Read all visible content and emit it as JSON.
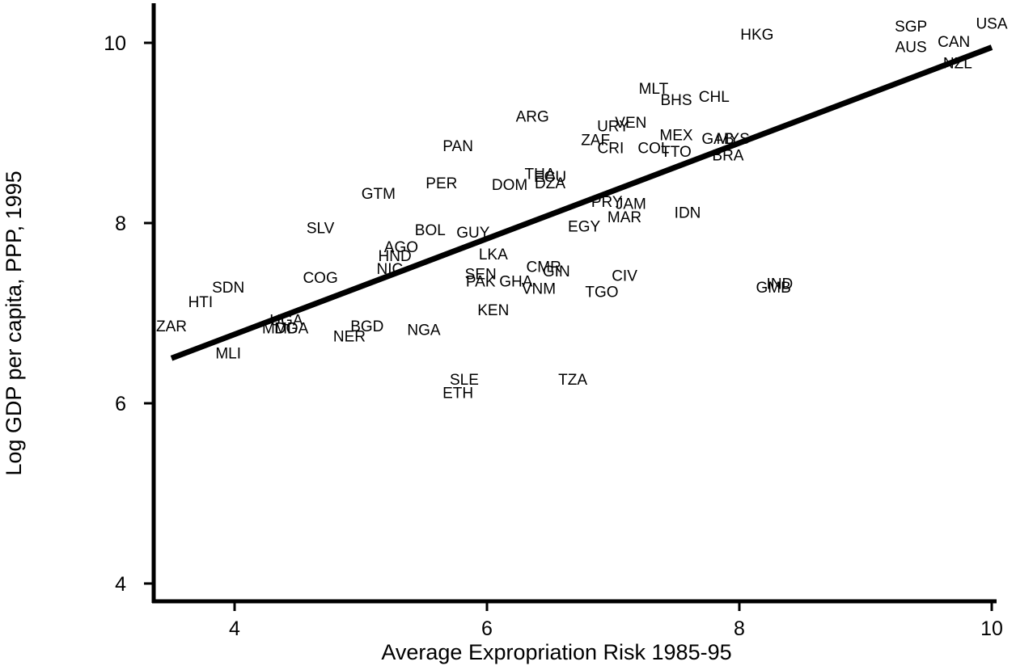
{
  "chart_data": {
    "type": "scatter",
    "xlabel": "Average Expropriation Risk 1985-95",
    "ylabel": "Log GDP per capita, PPP, 1995",
    "xlim": [
      3.4,
      10.3
    ],
    "ylim": [
      3.8,
      10.5
    ],
    "x_ticks": [
      4,
      6,
      8,
      10
    ],
    "y_ticks": [
      4,
      6,
      8,
      10
    ],
    "grid": false,
    "legend": "none",
    "fit_line": {
      "x": [
        3.5,
        10.0
      ],
      "y": [
        6.5,
        9.95
      ]
    },
    "points": [
      {
        "label": "USA",
        "x": 10.0,
        "y": 10.22
      },
      {
        "label": "SGP",
        "x": 9.36,
        "y": 10.19
      },
      {
        "label": "AUS",
        "x": 9.36,
        "y": 9.96
      },
      {
        "label": "CAN",
        "x": 9.7,
        "y": 10.02
      },
      {
        "label": "NZL",
        "x": 9.73,
        "y": 9.78
      },
      {
        "label": "HKG",
        "x": 8.14,
        "y": 10.1
      },
      {
        "label": "MLT",
        "x": 7.32,
        "y": 9.5
      },
      {
        "label": "BHS",
        "x": 7.5,
        "y": 9.37
      },
      {
        "label": "CHL",
        "x": 7.8,
        "y": 9.41
      },
      {
        "label": "ARG",
        "x": 6.36,
        "y": 9.19
      },
      {
        "label": "URY",
        "x": 7.0,
        "y": 9.08
      },
      {
        "label": "VEN",
        "x": 7.14,
        "y": 9.12
      },
      {
        "label": "ZAF",
        "x": 6.86,
        "y": 8.93
      },
      {
        "label": "CRI",
        "x": 6.98,
        "y": 8.84
      },
      {
        "label": "COL",
        "x": 7.32,
        "y": 8.84
      },
      {
        "label": "MEX",
        "x": 7.5,
        "y": 8.98
      },
      {
        "label": "TTO",
        "x": 7.5,
        "y": 8.8
      },
      {
        "label": "GAB",
        "x": 7.83,
        "y": 8.94
      },
      {
        "label": "MYS",
        "x": 7.95,
        "y": 8.94
      },
      {
        "label": "BRA",
        "x": 7.91,
        "y": 8.76
      },
      {
        "label": "PAN",
        "x": 5.77,
        "y": 8.86
      },
      {
        "label": "THA",
        "x": 6.42,
        "y": 8.55
      },
      {
        "label": "ECU",
        "x": 6.5,
        "y": 8.52
      },
      {
        "label": "DOM",
        "x": 6.18,
        "y": 8.43
      },
      {
        "label": "DZA",
        "x": 6.5,
        "y": 8.45
      },
      {
        "label": "PER",
        "x": 5.64,
        "y": 8.45
      },
      {
        "label": "GTM",
        "x": 5.14,
        "y": 8.33
      },
      {
        "label": "PRY",
        "x": 6.95,
        "y": 8.24
      },
      {
        "label": "JAM",
        "x": 7.14,
        "y": 8.22
      },
      {
        "label": "MAR",
        "x": 7.09,
        "y": 8.07
      },
      {
        "label": "EGY",
        "x": 6.77,
        "y": 7.97
      },
      {
        "label": "IDN",
        "x": 7.59,
        "y": 8.12
      },
      {
        "label": "SLV",
        "x": 4.68,
        "y": 7.95
      },
      {
        "label": "BOL",
        "x": 5.55,
        "y": 7.93
      },
      {
        "label": "GUY",
        "x": 5.89,
        "y": 7.9
      },
      {
        "label": "LKA",
        "x": 6.05,
        "y": 7.66
      },
      {
        "label": "AGO",
        "x": 5.32,
        "y": 7.74
      },
      {
        "label": "HND",
        "x": 5.27,
        "y": 7.64
      },
      {
        "label": "NIC",
        "x": 5.23,
        "y": 7.5
      },
      {
        "label": "COG",
        "x": 4.68,
        "y": 7.4
      },
      {
        "label": "SDN",
        "x": 3.95,
        "y": 7.29
      },
      {
        "label": "HTI",
        "x": 3.73,
        "y": 7.13
      },
      {
        "label": "SEN",
        "x": 5.95,
        "y": 7.44
      },
      {
        "label": "PAK",
        "x": 5.95,
        "y": 7.36
      },
      {
        "label": "GHA",
        "x": 6.23,
        "y": 7.36
      },
      {
        "label": "CMR",
        "x": 6.45,
        "y": 7.52
      },
      {
        "label": "GIN",
        "x": 6.55,
        "y": 7.47
      },
      {
        "label": "VNM",
        "x": 6.41,
        "y": 7.28
      },
      {
        "label": "CIV",
        "x": 7.09,
        "y": 7.42
      },
      {
        "label": "TGO",
        "x": 6.91,
        "y": 7.24
      },
      {
        "label": "IND",
        "x": 8.32,
        "y": 7.33
      },
      {
        "label": "GMB",
        "x": 8.27,
        "y": 7.29
      },
      {
        "label": "KEN",
        "x": 6.05,
        "y": 7.04
      },
      {
        "label": "UGA",
        "x": 4.41,
        "y": 6.93
      },
      {
        "label": "MDG",
        "x": 4.36,
        "y": 6.84
      },
      {
        "label": "MDA",
        "x": 4.45,
        "y": 6.84
      },
      {
        "label": "BGD",
        "x": 5.05,
        "y": 6.86
      },
      {
        "label": "NER",
        "x": 4.91,
        "y": 6.75
      },
      {
        "label": "NGA",
        "x": 5.5,
        "y": 6.82
      },
      {
        "label": "ZAR",
        "x": 3.5,
        "y": 6.86
      },
      {
        "label": "MLI",
        "x": 3.95,
        "y": 6.56
      },
      {
        "label": "SLE",
        "x": 5.82,
        "y": 6.27
      },
      {
        "label": "ETH",
        "x": 5.77,
        "y": 6.12
      },
      {
        "label": "TZA",
        "x": 6.68,
        "y": 6.27
      }
    ]
  }
}
